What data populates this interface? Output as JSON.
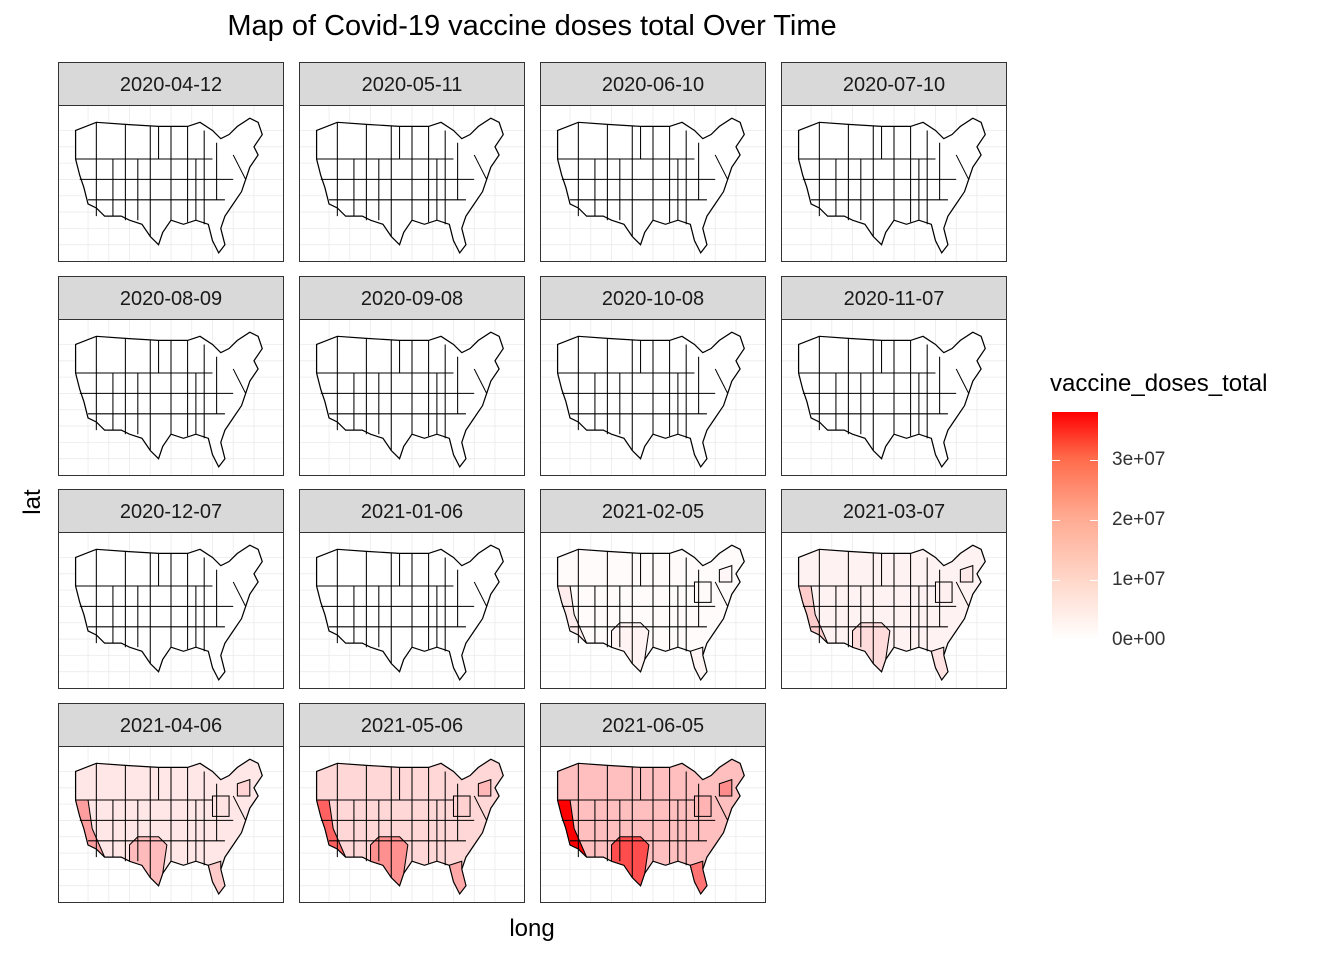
{
  "title": "Map of Covid-19 vaccine doses total Over Time",
  "xlabel": "long",
  "ylabel": "lat",
  "legend": {
    "title": "vaccine_doses_total",
    "ticks": [
      "0e+00",
      "1e+07",
      "2e+07",
      "3e+07"
    ],
    "tick_values": [
      0,
      10000000,
      20000000,
      30000000
    ],
    "max": 38000000,
    "low_color": "#ffffff",
    "high_color": "#ff0000"
  },
  "panels": [
    {
      "date": "2020-04-12",
      "level": 0
    },
    {
      "date": "2020-05-11",
      "level": 0
    },
    {
      "date": "2020-06-10",
      "level": 0
    },
    {
      "date": "2020-07-10",
      "level": 0
    },
    {
      "date": "2020-08-09",
      "level": 0
    },
    {
      "date": "2020-09-08",
      "level": 0
    },
    {
      "date": "2020-10-08",
      "level": 0
    },
    {
      "date": "2020-11-07",
      "level": 0
    },
    {
      "date": "2020-12-07",
      "level": 0
    },
    {
      "date": "2021-01-06",
      "level": 0
    },
    {
      "date": "2021-02-05",
      "level": 0.07
    },
    {
      "date": "2021-03-07",
      "level": 0.2
    },
    {
      "date": "2021-04-06",
      "level": 0.38
    },
    {
      "date": "2021-05-06",
      "level": 0.62
    },
    {
      "date": "2021-06-05",
      "level": 1.0
    }
  ]
}
